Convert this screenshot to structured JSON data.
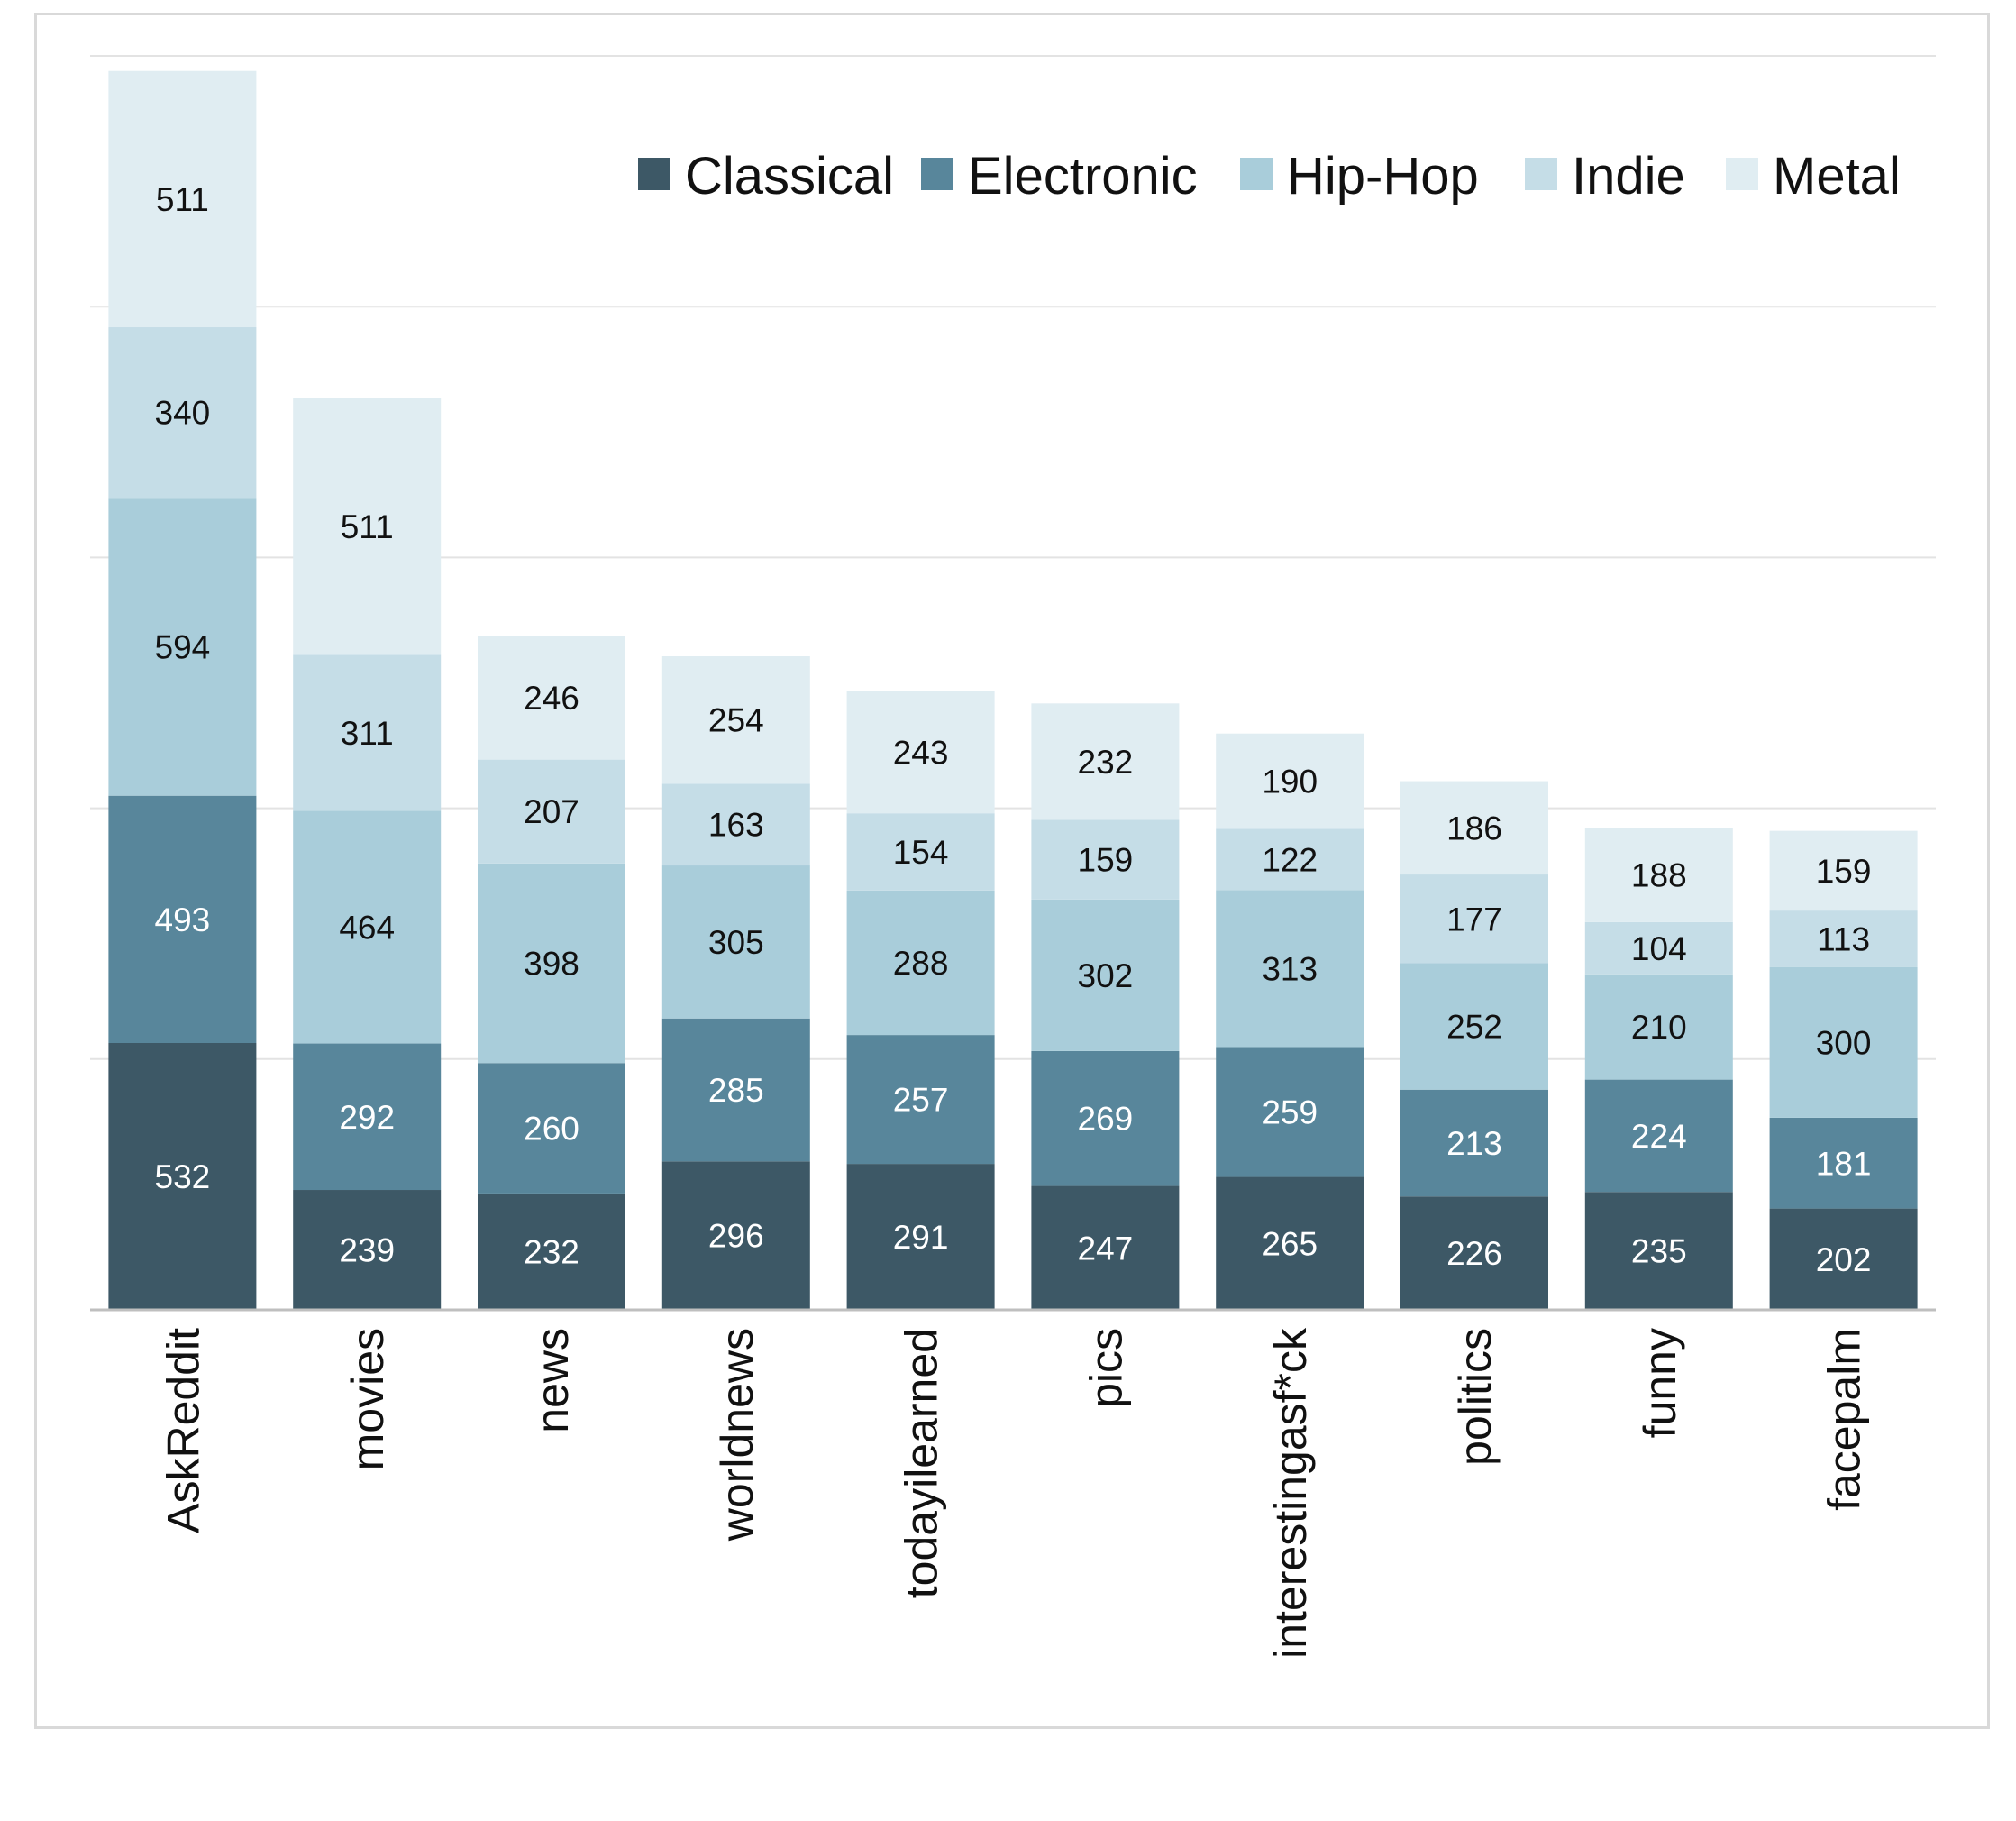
{
  "chart_data": {
    "type": "bar",
    "stacked": true,
    "title": "",
    "xlabel": "",
    "ylabel": "",
    "ylim": [
      0,
      2500
    ],
    "grid": true,
    "legend": "top-right",
    "categories": [
      "AskReddit",
      "movies",
      "news",
      "worldnews",
      "todayilearned",
      "pics",
      "interestingasf*ck",
      "politics",
      "funny",
      "facepalm"
    ],
    "series": [
      {
        "name": "Classical",
        "color": "#3d5866",
        "values": [
          532,
          239,
          232,
          296,
          291,
          247,
          265,
          226,
          235,
          202
        ]
      },
      {
        "name": "Electronic",
        "color": "#58869b",
        "values": [
          493,
          292,
          260,
          285,
          257,
          269,
          259,
          213,
          224,
          181
        ]
      },
      {
        "name": "Hip-Hop",
        "color": "#a9cdda",
        "values": [
          594,
          464,
          398,
          305,
          288,
          302,
          313,
          252,
          210,
          300
        ]
      },
      {
        "name": "Indie",
        "color": "#c5dde7",
        "values": [
          340,
          311,
          207,
          163,
          154,
          159,
          122,
          177,
          104,
          113
        ]
      },
      {
        "name": "Metal",
        "color": "#e0edf2",
        "values": [
          511,
          511,
          246,
          254,
          243,
          232,
          190,
          186,
          188,
          159
        ]
      }
    ]
  }
}
